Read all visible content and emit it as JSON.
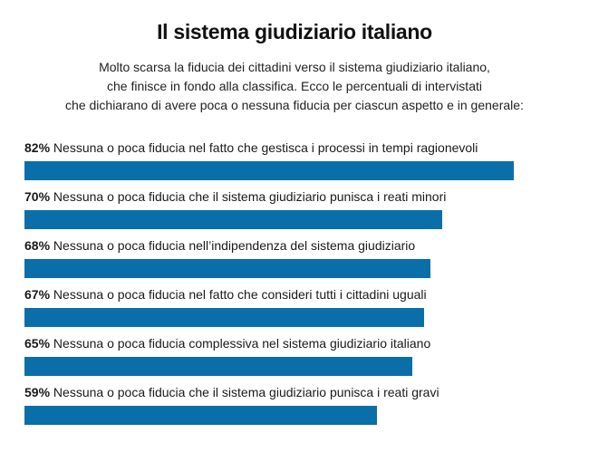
{
  "title": "Il sistema giudiziario italiano",
  "subtitle": [
    "Molto scarsa la fiducia dei cittadini verso il sistema giudiziario italiano,",
    "che finisce in fondo alla classifica. Ecco le percentuali di intervistati",
    "che dichiarano di avere poca o nessuna fiducia per ciascun aspetto e in generale:"
  ],
  "colors": {
    "bar": "#0a6fa8"
  },
  "chart_data": {
    "type": "bar",
    "orientation": "horizontal",
    "categories": [
      "Nessuna o poca fiducia nel fatto che gestisca i processi in tempi ragionevoli",
      "Nessuna o poca fiducia che il sistema giudiziario punisca i reati minori",
      "Nessuna o poca fiducia nell’indipendenza del sistema giudiziario",
      "Nessuna o poca fiducia nel fatto che consideri tutti i cittadini uguali",
      "Nessuna o poca fiducia complessiva nel sistema giudiziario italiano",
      "Nessuna o poca fiducia che il sistema giudiziario punisca i reati gravi"
    ],
    "value_labels": [
      "82%",
      "70%",
      "68%",
      "67%",
      "65%",
      "59%"
    ],
    "values": [
      82,
      70,
      68,
      67,
      65,
      59
    ],
    "xlim": [
      0,
      100
    ],
    "grid": false,
    "legend": "none"
  }
}
